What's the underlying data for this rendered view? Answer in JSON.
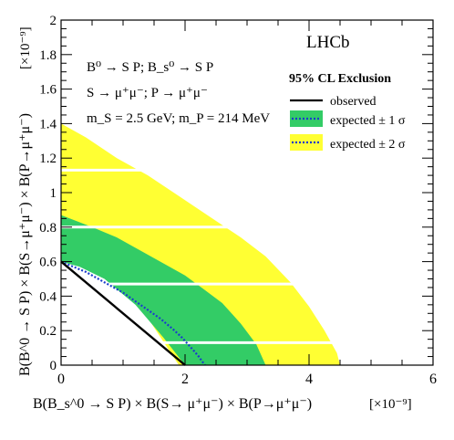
{
  "chart_data": {
    "type": "area",
    "experiment_label": "LHCb",
    "xlabel": "B(B_s^0 → S P) × B(S→ μ⁺μ⁻) × B(P→μ⁺μ⁻)",
    "xlabel_unit": "[×10⁻⁹]",
    "ylabel": "B(B^0 → S P) × B(S→μ⁺μ⁻) × B(P→μ⁺μ⁻)",
    "ylabel_unit": "[×10⁻⁹]",
    "xlim": [
      0,
      6
    ],
    "ylim": [
      0,
      2
    ],
    "x_ticks": [
      "0",
      "2",
      "4",
      "6"
    ],
    "y_ticks": [
      "0",
      "0.2",
      "0.4",
      "0.6",
      "0.8",
      "1",
      "1.2",
      "1.4",
      "1.6",
      "1.8",
      "2"
    ],
    "info_lines": [
      "B⁰ → S P; B_s⁰ → S P",
      "S → μ⁺μ⁻; P → μ⁺μ⁻",
      "m_S = 2.5 GeV; m_P = 214 MeV"
    ],
    "legend_title": "95% CL Exclusion",
    "legend_position": "top-right",
    "series": [
      {
        "name": "expected ± 2 σ",
        "kind": "band",
        "color": "#ffff33",
        "polygon": [
          [
            0,
            1.4
          ],
          [
            0.4,
            1.32
          ],
          [
            0.9,
            1.2
          ],
          [
            1.4,
            1.1
          ],
          [
            1.9,
            0.98
          ],
          [
            2.4,
            0.86
          ],
          [
            2.9,
            0.74
          ],
          [
            3.3,
            0.63
          ],
          [
            3.7,
            0.48
          ],
          [
            4.0,
            0.34
          ],
          [
            4.25,
            0.2
          ],
          [
            4.45,
            0.07
          ],
          [
            4.5,
            0.0
          ],
          [
            2.3,
            0.0
          ],
          [
            1.9,
            0.0
          ],
          [
            1.35,
            0.3
          ],
          [
            0.8,
            0.52
          ],
          [
            0.4,
            0.58
          ],
          [
            0,
            0.6
          ]
        ]
      },
      {
        "name": "expected ± 1 σ",
        "kind": "band",
        "color": "#33cc66",
        "polygon": [
          [
            0,
            0.87
          ],
          [
            0.5,
            0.8
          ],
          [
            0.9,
            0.74
          ],
          [
            1.3,
            0.66
          ],
          [
            1.7,
            0.58
          ],
          [
            2.0,
            0.52
          ],
          [
            2.3,
            0.44
          ],
          [
            2.6,
            0.36
          ],
          [
            2.9,
            0.24
          ],
          [
            3.15,
            0.12
          ],
          [
            3.3,
            0.0
          ],
          [
            2.4,
            0.0
          ],
          [
            2.0,
            0.0
          ],
          [
            1.65,
            0.16
          ],
          [
            1.2,
            0.35
          ],
          [
            0.7,
            0.5
          ],
          [
            0.3,
            0.57
          ],
          [
            0,
            0.6
          ]
        ]
      },
      {
        "name": "expected",
        "kind": "line",
        "style": "dotted",
        "color": "#1a3ccc",
        "points": [
          [
            0,
            0.6
          ],
          [
            0.2,
            0.57
          ],
          [
            0.4,
            0.54
          ],
          [
            0.6,
            0.5
          ],
          [
            0.8,
            0.46
          ],
          [
            1.0,
            0.42
          ],
          [
            1.2,
            0.37
          ],
          [
            1.4,
            0.32
          ],
          [
            1.6,
            0.27
          ],
          [
            1.8,
            0.21
          ],
          [
            1.95,
            0.16
          ],
          [
            2.05,
            0.12
          ],
          [
            2.15,
            0.08
          ],
          [
            2.22,
            0.05
          ],
          [
            2.28,
            0.02
          ],
          [
            2.32,
            0.0
          ]
        ]
      },
      {
        "name": "observed",
        "kind": "line",
        "style": "solid",
        "color": "#000000",
        "points": [
          [
            0,
            0.6
          ],
          [
            2.0,
            0.0
          ]
        ]
      }
    ],
    "white_gaps_y": [
      0.13,
      0.47,
      0.8,
      1.13
    ],
    "colors": {
      "yellow_band": "#ffff33",
      "green_band": "#33cc66",
      "expected_line": "#1a3ccc",
      "observed_line": "#000000"
    }
  }
}
